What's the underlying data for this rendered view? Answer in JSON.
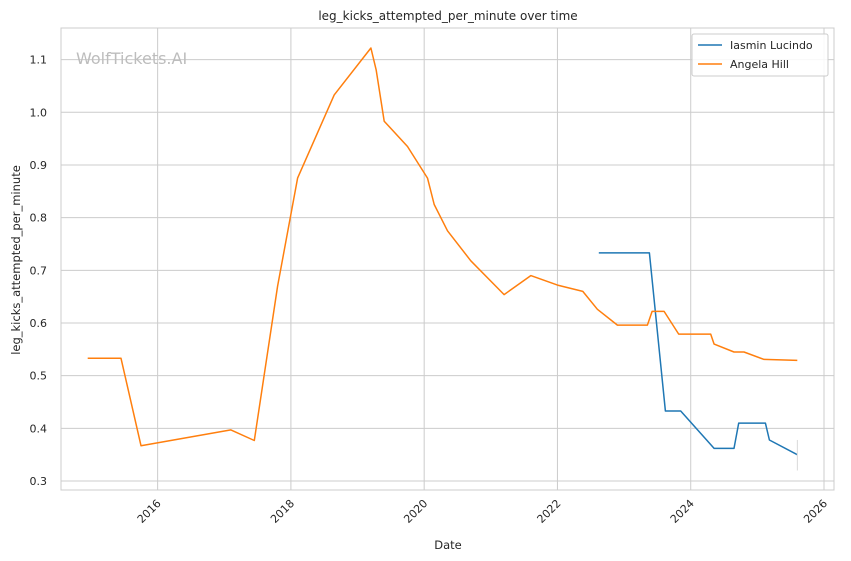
{
  "chart_data": {
    "type": "line",
    "title": "leg_kicks_attempted_per_minute over time",
    "xlabel": "Date",
    "ylabel": "leg_kicks_attempted_per_minute",
    "xlim": [
      2014.55,
      2026.15
    ],
    "ylim": [
      0.283,
      1.16
    ],
    "x_ticks": [
      2016,
      2018,
      2020,
      2022,
      2024,
      2026
    ],
    "y_ticks": [
      0.3,
      0.4,
      0.5,
      0.6,
      0.7,
      0.8,
      0.9,
      1.0,
      1.1
    ],
    "grid": true,
    "legend_position": "top-right",
    "watermark": "WolfTickets.AI",
    "series": [
      {
        "name": "Iasmin Lucindo",
        "color": "#1f77b4",
        "x": [
          2022.62,
          2023.38,
          2023.62,
          2023.85,
          2024.35,
          2024.65,
          2024.72,
          2025.12,
          2025.18,
          2025.6
        ],
        "y": [
          0.733,
          0.733,
          0.433,
          0.433,
          0.362,
          0.362,
          0.41,
          0.41,
          0.378,
          0.35
        ]
      },
      {
        "name": "Angela Hill",
        "color": "#ff7f0e",
        "x": [
          2014.95,
          2015.45,
          2015.75,
          2017.1,
          2017.45,
          2017.8,
          2018.1,
          2018.65,
          2019.2,
          2019.28,
          2019.4,
          2019.75,
          2020.05,
          2020.15,
          2020.35,
          2020.7,
          2021.2,
          2021.6,
          2022.0,
          2022.38,
          2022.6,
          2022.9,
          2023.35,
          2023.42,
          2023.6,
          2023.82,
          2024.3,
          2024.35,
          2024.65,
          2024.8,
          2025.1,
          2025.6
        ],
        "y": [
          0.533,
          0.533,
          0.367,
          0.397,
          0.377,
          0.67,
          0.875,
          1.033,
          1.122,
          1.08,
          0.983,
          0.935,
          0.875,
          0.825,
          0.775,
          0.718,
          0.654,
          0.69,
          0.672,
          0.66,
          0.626,
          0.596,
          0.596,
          0.622,
          0.622,
          0.579,
          0.579,
          0.56,
          0.545,
          0.545,
          0.531,
          0.529
        ]
      }
    ]
  }
}
